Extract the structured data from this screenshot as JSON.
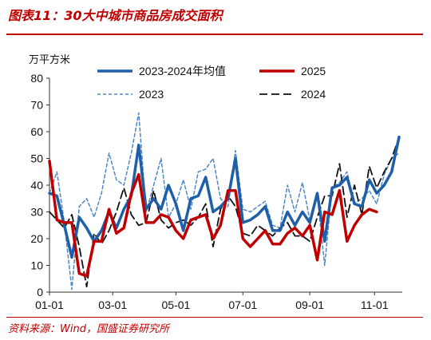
{
  "header": {
    "title": "图表11：30大中城市商品房成交面积",
    "unit": "万平方米"
  },
  "footer": {
    "source": "资料来源：Wind，国盛证券研究所"
  },
  "chart_data": {
    "type": "line",
    "ylim": [
      0,
      80
    ],
    "yticks": [
      0,
      10,
      20,
      30,
      40,
      50,
      60,
      70,
      80
    ],
    "xticks": [
      {
        "label": "01-01",
        "week": 0
      },
      {
        "label": "03-01",
        "week": 8.5
      },
      {
        "label": "05-01",
        "week": 17
      },
      {
        "label": "07-01",
        "week": 26
      },
      {
        "label": "09-01",
        "week": 35
      },
      {
        "label": "11-01",
        "week": 43.7
      }
    ],
    "legend_position": "top",
    "series": [
      {
        "name": "2023-2024年均值",
        "color": "#1f5fa8",
        "dash": "solid",
        "width": 3.5,
        "values": [
          37,
          36,
          25,
          13,
          28,
          24,
          19,
          23,
          30,
          24,
          31,
          36,
          55,
          31,
          35,
          31,
          40,
          33,
          23,
          35,
          36,
          43,
          30,
          32,
          35,
          50,
          26,
          27,
          29,
          32,
          23,
          23,
          30,
          25,
          30,
          26,
          37,
          19,
          39,
          40,
          43,
          33,
          32,
          42,
          37,
          40,
          45,
          58
        ]
      },
      {
        "name": "2025",
        "color": "#c00000",
        "dash": "solid",
        "width": 3.5,
        "values": [
          49,
          27,
          26,
          26,
          7,
          6,
          19,
          19,
          31,
          22,
          24,
          37,
          44,
          26,
          26,
          29,
          28,
          23,
          20,
          27,
          28,
          29,
          20,
          25,
          38,
          38,
          20,
          17,
          20,
          23,
          18,
          18,
          22,
          24,
          21,
          25,
          12,
          30,
          29,
          38,
          19,
          25,
          29,
          31,
          30
        ]
      },
      {
        "name": "2023",
        "color": "#4f87c6",
        "dash": "4,3",
        "width": 1.5,
        "values": [
          37,
          45,
          26,
          1,
          32,
          35,
          28,
          37,
          52,
          42,
          40,
          52,
          67,
          30,
          40,
          50,
          28,
          33,
          42,
          31,
          45,
          46,
          50,
          35,
          32,
          53,
          31,
          30,
          32,
          34,
          25,
          24,
          40,
          30,
          41,
          27,
          36,
          10,
          39,
          41,
          45,
          33,
          35,
          38,
          33,
          44,
          50,
          52
        ]
      },
      {
        "name": "2024",
        "color": "#111111",
        "dash": "10,5",
        "width": 1.8,
        "values": [
          30,
          27,
          24,
          29,
          17,
          2,
          22,
          18,
          23,
          30,
          39,
          29,
          25,
          26,
          38,
          27,
          24,
          26,
          27,
          25,
          28,
          33,
          17,
          31,
          36,
          32,
          22,
          21,
          25,
          23,
          21,
          24,
          26,
          21,
          21,
          19,
          28,
          36,
          36,
          48,
          28,
          40,
          29,
          47,
          39,
          45,
          50,
          58
        ]
      }
    ]
  }
}
